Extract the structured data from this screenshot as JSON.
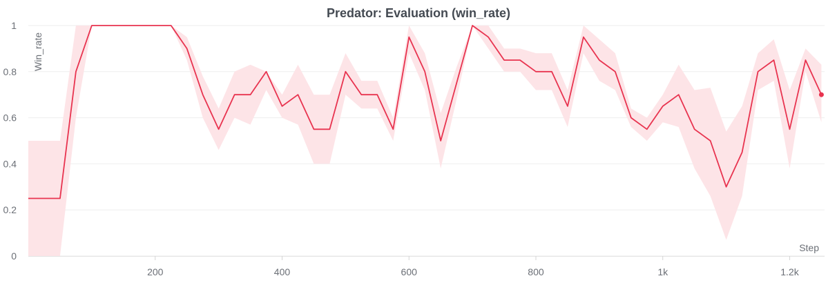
{
  "chart_data": {
    "type": "line",
    "title": "Predator: Evaluation (win_rate)",
    "xlabel": "Step",
    "ylabel": "Win_rate",
    "xlim": [
      0,
      1255
    ],
    "ylim": [
      0,
      1
    ],
    "x_ticks": [
      {
        "value": 200,
        "label": "200"
      },
      {
        "value": 400,
        "label": "400"
      },
      {
        "value": 600,
        "label": "600"
      },
      {
        "value": 800,
        "label": "800"
      },
      {
        "value": 1000,
        "label": "1k"
      },
      {
        "value": 1200,
        "label": "1.2k"
      }
    ],
    "y_ticks": [
      {
        "value": 0,
        "label": "0"
      },
      {
        "value": 0.2,
        "label": "0.2"
      },
      {
        "value": 0.4,
        "label": "0.4"
      },
      {
        "value": 0.6,
        "label": "0.6"
      },
      {
        "value": 0.8,
        "label": "0.8"
      },
      {
        "value": 1,
        "label": "1"
      }
    ],
    "grid": true,
    "colors": {
      "line": "#e8334f",
      "band": "#fde4e7"
    },
    "series": [
      {
        "x": [
          0,
          50,
          75,
          100,
          125,
          150,
          175,
          200,
          225,
          250,
          275,
          300,
          325,
          350,
          375,
          400,
          425,
          450,
          475,
          500,
          525,
          550,
          575,
          600,
          625,
          650,
          675,
          700,
          725,
          750,
          775,
          800,
          825,
          850,
          875,
          900,
          925,
          950,
          975,
          1000,
          1025,
          1050,
          1075,
          1100,
          1125,
          1150,
          1175,
          1200,
          1225,
          1250
        ],
        "y": [
          0.25,
          0.25,
          0.8,
          1.0,
          1.0,
          1.0,
          1.0,
          1.0,
          1.0,
          0.9,
          0.7,
          0.55,
          0.7,
          0.7,
          0.8,
          0.65,
          0.7,
          0.55,
          0.55,
          0.8,
          0.7,
          0.7,
          0.55,
          0.95,
          0.8,
          0.5,
          0.75,
          1.0,
          0.95,
          0.85,
          0.85,
          0.8,
          0.8,
          0.65,
          0.95,
          0.85,
          0.8,
          0.6,
          0.55,
          0.65,
          0.7,
          0.55,
          0.5,
          0.3,
          0.45,
          0.8,
          0.85,
          0.55,
          0.85,
          0.7
        ],
        "y_lower": [
          0.0,
          0.0,
          0.6,
          1.0,
          1.0,
          1.0,
          1.0,
          1.0,
          1.0,
          0.85,
          0.6,
          0.46,
          0.6,
          0.57,
          0.72,
          0.6,
          0.57,
          0.4,
          0.4,
          0.7,
          0.64,
          0.64,
          0.5,
          0.88,
          0.72,
          0.38,
          0.68,
          1.0,
          0.9,
          0.8,
          0.8,
          0.72,
          0.72,
          0.56,
          0.88,
          0.76,
          0.72,
          0.56,
          0.5,
          0.58,
          0.56,
          0.38,
          0.26,
          0.07,
          0.26,
          0.72,
          0.76,
          0.38,
          0.8,
          0.58
        ],
        "y_upper": [
          0.5,
          0.5,
          1.0,
          1.0,
          1.0,
          1.0,
          1.0,
          1.0,
          1.0,
          0.95,
          0.78,
          0.64,
          0.8,
          0.83,
          0.8,
          0.7,
          0.83,
          0.7,
          0.7,
          0.88,
          0.76,
          0.76,
          0.6,
          1.0,
          0.88,
          0.62,
          0.82,
          1.0,
          1.0,
          0.9,
          0.9,
          0.88,
          0.88,
          0.72,
          1.0,
          0.94,
          0.88,
          0.64,
          0.6,
          0.7,
          0.83,
          0.72,
          0.73,
          0.54,
          0.65,
          0.88,
          0.94,
          0.72,
          0.9,
          0.83
        ]
      }
    ]
  }
}
